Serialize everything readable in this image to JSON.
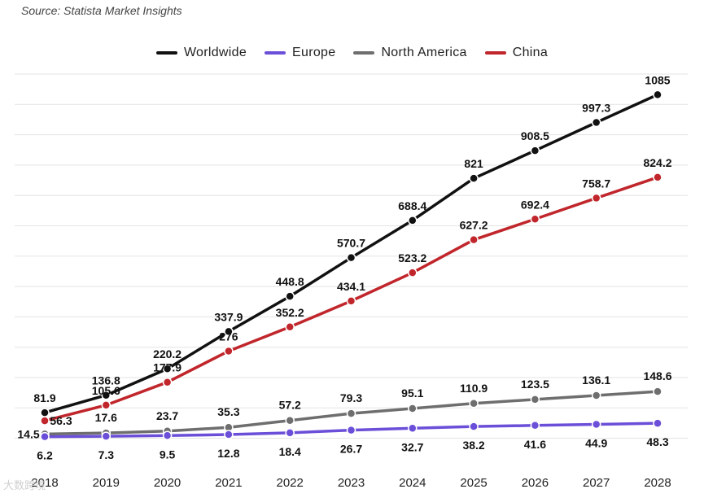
{
  "source": "Source: Statista Market Insights",
  "watermark": "大数跨境",
  "chart_data": {
    "type": "line",
    "title": "",
    "xlabel": "",
    "ylabel": "",
    "ylim": [
      0,
      1150
    ],
    "grid": true,
    "legend_position": "top-center",
    "categories": [
      "2018",
      "2019",
      "2020",
      "2021",
      "2022",
      "2023",
      "2024",
      "2025",
      "2026",
      "2027",
      "2028"
    ],
    "series": [
      {
        "name": "Worldwide",
        "color": "#111111",
        "values": [
          81.9,
          136.8,
          220.2,
          337.9,
          448.8,
          570.7,
          688.4,
          821,
          908.5,
          997.3,
          1085
        ],
        "labels": [
          "81.9",
          "136.8",
          "220.2",
          "337.9",
          "448.8",
          "570.7",
          "688.4",
          "821",
          "908.5",
          "997.3",
          "1085"
        ]
      },
      {
        "name": "Europe",
        "color": "#6b4fd8",
        "values": [
          6.2,
          7.3,
          9.5,
          12.8,
          18.4,
          26.7,
          32.7,
          38.2,
          41.6,
          44.9,
          48.3
        ],
        "labels": [
          "6.2",
          "7.3",
          "9.5",
          "12.8",
          "18.4",
          "26.7",
          "32.7",
          "38.2",
          "41.6",
          "44.9",
          "48.3"
        ]
      },
      {
        "name": "North America",
        "color": "#6e6e6e",
        "values": [
          14.5,
          17.6,
          23.7,
          35.3,
          57.2,
          79.3,
          95.1,
          110.9,
          123.5,
          136.1,
          148.6
        ],
        "labels": [
          "14.5",
          "17.6",
          "23.7",
          "35.3",
          "57.2",
          "79.3",
          "95.1",
          "110.9",
          "123.5",
          "136.1",
          "148.6"
        ]
      },
      {
        "name": "China",
        "color": "#c0262b",
        "values": [
          56.3,
          105.6,
          177.9,
          276,
          352.2,
          434.1,
          523.2,
          627.2,
          692.4,
          758.7,
          824.2
        ],
        "labels": [
          "56.3",
          "105.6",
          "177.9",
          "276",
          "352.2",
          "434.1",
          "523.2",
          "627.2",
          "692.4",
          "758.7",
          "824.2"
        ]
      }
    ]
  }
}
